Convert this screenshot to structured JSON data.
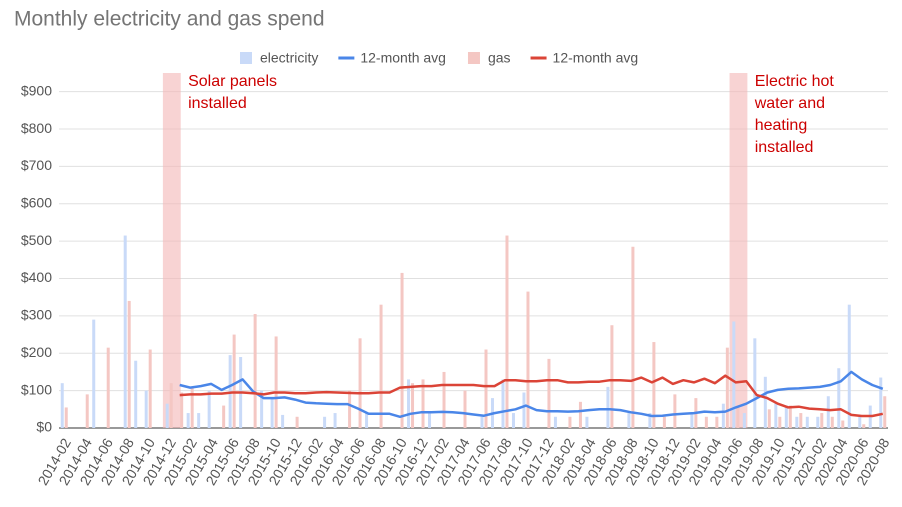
{
  "chart_data": {
    "type": "bar",
    "title": "Monthly electricity and gas spend",
    "categories": [
      "2014-02",
      null,
      "2014-04",
      null,
      "2014-06",
      null,
      "2014-08",
      null,
      "2014-10",
      null,
      "2014-12",
      null,
      "2015-02",
      null,
      "2015-04",
      null,
      "2015-06",
      null,
      "2015-08",
      null,
      "2015-10",
      null,
      "2015-12",
      null,
      "2016-02",
      null,
      "2016-04",
      null,
      "2016-06",
      null,
      "2016-08",
      null,
      "2016-10",
      null,
      "2016-12",
      null,
      "2017-02",
      null,
      "2017-04",
      null,
      "2017-06",
      null,
      "2017-08",
      null,
      "2017-10",
      null,
      "2017-12",
      null,
      "2018-02",
      null,
      "2018-04",
      null,
      "2018-06",
      null,
      "2018-08",
      null,
      "2018-10",
      null,
      "2018-12",
      null,
      "2019-02",
      null,
      "2019-04",
      null,
      "2019-06",
      null,
      "2019-08",
      null,
      "2019-10",
      null,
      "2019-12",
      null,
      "2020-02",
      null,
      "2020-04",
      null,
      "2020-06",
      null,
      "2020-08"
    ],
    "series": [
      {
        "name": "electricity",
        "type": "bar",
        "color": "#c9daf8",
        "values": [
          120,
          0,
          0,
          290,
          0,
          0,
          515,
          180,
          100,
          0,
          65,
          0,
          40,
          40,
          100,
          0,
          195,
          190,
          0,
          100,
          80,
          35,
          0,
          0,
          0,
          30,
          40,
          0,
          0,
          40,
          0,
          0,
          0,
          130,
          0,
          40,
          0,
          0,
          0,
          0,
          30,
          80,
          130,
          40,
          95,
          0,
          0,
          30,
          0,
          0,
          30,
          0,
          110,
          0,
          40,
          0,
          40,
          0,
          0,
          0,
          40,
          0,
          0,
          65,
          285,
          40,
          240,
          137,
          70,
          60,
          30,
          30,
          30,
          85,
          160,
          330,
          30,
          60,
          135
        ]
      },
      {
        "name": "12-month avg",
        "type": "line",
        "color": "#4a86e8",
        "values": [
          null,
          null,
          null,
          null,
          null,
          null,
          null,
          null,
          null,
          null,
          null,
          115,
          108,
          112,
          118,
          102,
          115,
          130,
          98,
          80,
          80,
          82,
          76,
          68,
          66,
          65,
          64,
          64,
          52,
          38,
          38,
          38,
          30,
          38,
          42,
          42,
          43,
          42,
          40,
          36,
          33,
          40,
          45,
          50,
          60,
          48,
          45,
          45,
          44,
          45,
          48,
          50,
          50,
          48,
          42,
          38,
          32,
          33,
          36,
          38,
          40,
          44,
          42,
          44,
          55,
          65,
          80,
          95,
          102,
          105,
          106,
          108,
          110,
          115,
          125,
          150,
          130,
          115,
          105
        ]
      },
      {
        "name": "gas",
        "type": "bar",
        "color": "#f4c7c3",
        "values": [
          55,
          0,
          90,
          0,
          215,
          0,
          340,
          0,
          210,
          0,
          120,
          95,
          110,
          0,
          0,
          60,
          250,
          0,
          305,
          0,
          245,
          0,
          30,
          0,
          0,
          0,
          0,
          100,
          240,
          0,
          330,
          0,
          415,
          120,
          130,
          0,
          150,
          0,
          100,
          0,
          210,
          0,
          515,
          0,
          365,
          0,
          185,
          0,
          30,
          70,
          0,
          0,
          275,
          0,
          485,
          0,
          230,
          30,
          90,
          0,
          80,
          30,
          30,
          215,
          60,
          0,
          0,
          50,
          30,
          60,
          40,
          0,
          40,
          30,
          20,
          0,
          10,
          0,
          85
        ]
      },
      {
        "name": "12-month avg",
        "type": "line",
        "color": "#db4437",
        "values": [
          null,
          null,
          null,
          null,
          null,
          null,
          null,
          null,
          null,
          null,
          null,
          88,
          90,
          90,
          92,
          92,
          95,
          95,
          93,
          90,
          95,
          95,
          93,
          93,
          95,
          96,
          95,
          94,
          93,
          93,
          95,
          95,
          108,
          110,
          112,
          112,
          115,
          115,
          115,
          115,
          112,
          112,
          128,
          128,
          125,
          125,
          128,
          128,
          122,
          122,
          124,
          124,
          128,
          128,
          126,
          135,
          122,
          135,
          118,
          128,
          122,
          132,
          120,
          140,
          122,
          125,
          88,
          80,
          65,
          55,
          57,
          52,
          50,
          48,
          50,
          35,
          32,
          32,
          38
        ]
      }
    ],
    "ylim": [
      0,
      950
    ],
    "yticks": [
      {
        "value": 0,
        "label": "$0"
      },
      {
        "value": 100,
        "label": "$100"
      },
      {
        "value": 200,
        "label": "$200"
      },
      {
        "value": 300,
        "label": "$300"
      },
      {
        "value": 400,
        "label": "$400"
      },
      {
        "value": 500,
        "label": "$500"
      },
      {
        "value": 600,
        "label": "$600"
      },
      {
        "value": 700,
        "label": "$700"
      },
      {
        "value": 800,
        "label": "$800"
      },
      {
        "value": 900,
        "label": "$900"
      }
    ],
    "grid": true,
    "legend": "top",
    "annotations": [
      {
        "at": "2014-12",
        "lines": [
          "Solar panels",
          "installed"
        ],
        "color": "#cc0000"
      },
      {
        "at": "2019-06",
        "lines": [
          "Electric hot",
          "water and",
          "heating",
          "installed"
        ],
        "color": "#cc0000"
      }
    ]
  }
}
